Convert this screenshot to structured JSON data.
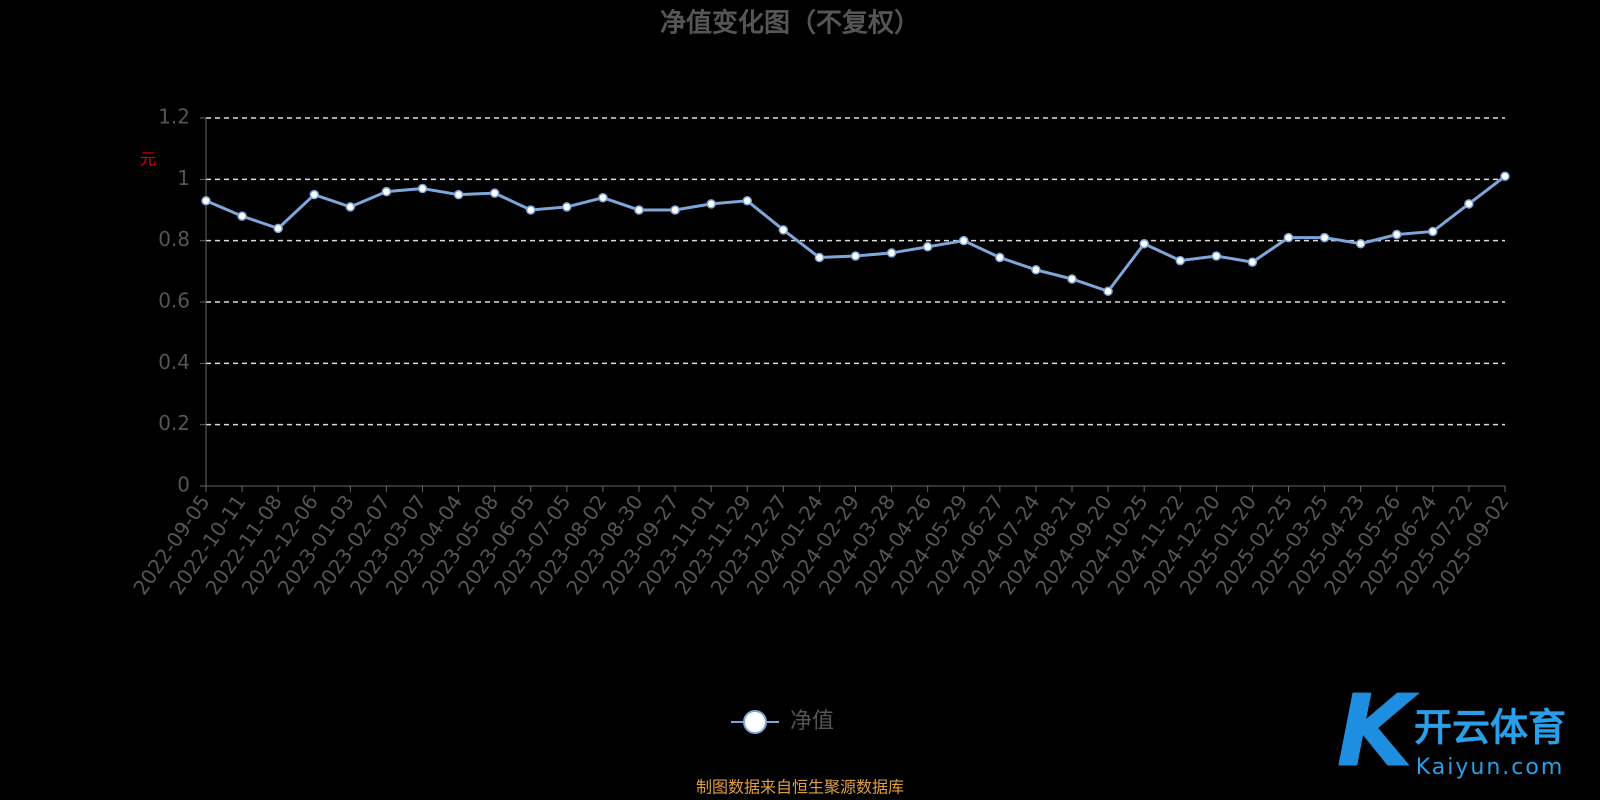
{
  "chart_data": {
    "type": "line",
    "title": "净值变化图（不复权）",
    "y_label": "元",
    "categories": [
      "2022-09-05",
      "2022-10-11",
      "2022-11-08",
      "2022-12-06",
      "2023-01-03",
      "2023-02-07",
      "2023-03-07",
      "2023-04-04",
      "2023-05-08",
      "2023-06-05",
      "2023-07-05",
      "2023-08-02",
      "2023-08-30",
      "2023-09-27",
      "2023-11-01",
      "2023-11-29",
      "2023-12-27",
      "2024-01-24",
      "2024-02-29",
      "2024-03-28",
      "2024-04-26",
      "2024-05-29",
      "2024-06-27",
      "2024-07-24",
      "2024-08-21",
      "2024-09-20",
      "2024-10-25",
      "2024-11-22",
      "2024-12-20",
      "2025-01-20",
      "2025-02-25",
      "2025-03-25",
      "2025-04-23",
      "2025-05-26",
      "2025-06-24",
      "2025-07-22",
      "2025-09-02"
    ],
    "series": [
      {
        "name": "净值",
        "color": "#7ea6d8",
        "values": [
          0.93,
          0.88,
          0.84,
          0.95,
          0.91,
          0.96,
          0.97,
          0.95,
          0.955,
          0.9,
          0.91,
          0.94,
          0.9,
          0.9,
          0.92,
          0.93,
          0.835,
          0.745,
          0.75,
          0.76,
          0.78,
          0.8,
          0.745,
          0.705,
          0.675,
          0.635,
          0.79,
          0.735,
          0.75,
          0.73,
          0.81,
          0.81,
          0.79,
          0.82,
          0.83,
          0.92,
          1.01
        ]
      }
    ],
    "ylim": [
      0,
      1.2
    ],
    "yticks": [
      0,
      0.2,
      0.4,
      0.6,
      0.8,
      1,
      1.2
    ],
    "grid": true,
    "source": "制图数据来自恒生聚源数据库"
  },
  "watermark": {
    "title": "开云体育",
    "subtitle": "Kaiyun.com"
  }
}
